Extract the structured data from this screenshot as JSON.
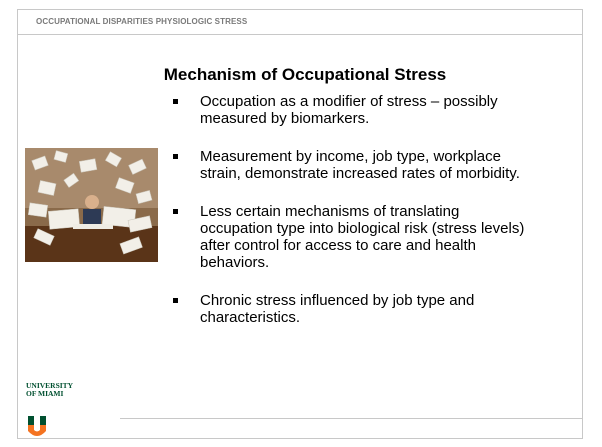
{
  "header": {
    "title": "OCCUPATIONAL DISPARITIES PHYSIOLOGIC STRESS"
  },
  "slide": {
    "title": "Mechanism of Occupational Stress",
    "bullets": [
      "Occupation as a modifier of stress – possibly measured by biomarkers.",
      "Measurement by income, job type, workplace strain, demonstrate increased rates of morbidity.",
      "Less certain mechanisms of translating occupation type into biological risk (stress levels) after control for access to care and health behaviors.",
      "Chronic stress influenced by job type and characteristics."
    ]
  },
  "logo": {
    "line1": "UNIVERSITY",
    "line2": "OF MIAMI"
  }
}
